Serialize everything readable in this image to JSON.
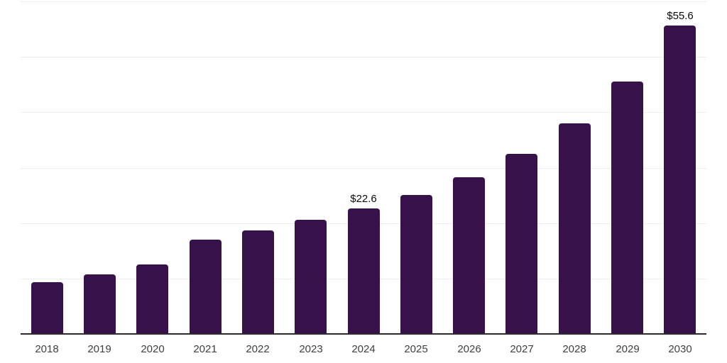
{
  "chart_data": {
    "type": "bar",
    "title": "",
    "xlabel": "",
    "ylabel": "",
    "categories": [
      "2018",
      "2019",
      "2020",
      "2021",
      "2022",
      "2023",
      "2024",
      "2025",
      "2026",
      "2027",
      "2028",
      "2029",
      "2030"
    ],
    "values": [
      9.3,
      10.7,
      12.5,
      17.0,
      18.7,
      20.6,
      22.6,
      25.1,
      28.3,
      32.5,
      38.0,
      45.5,
      55.6
    ],
    "data_labels": [
      null,
      null,
      null,
      null,
      null,
      null,
      "$22.6",
      null,
      null,
      null,
      null,
      null,
      "$55.6"
    ],
    "ylim": [
      0,
      60
    ],
    "grid_step": 10,
    "grid": "horizontal-only",
    "legend": "none",
    "y_tick_labels": "none",
    "colors": {
      "bar": "#36114a",
      "gridline": "#ededed",
      "axis": "#2b2b2b",
      "tick_text": "#3f3f3f",
      "data_label_text": "#0a0a0a",
      "background": "#ffffff"
    }
  }
}
